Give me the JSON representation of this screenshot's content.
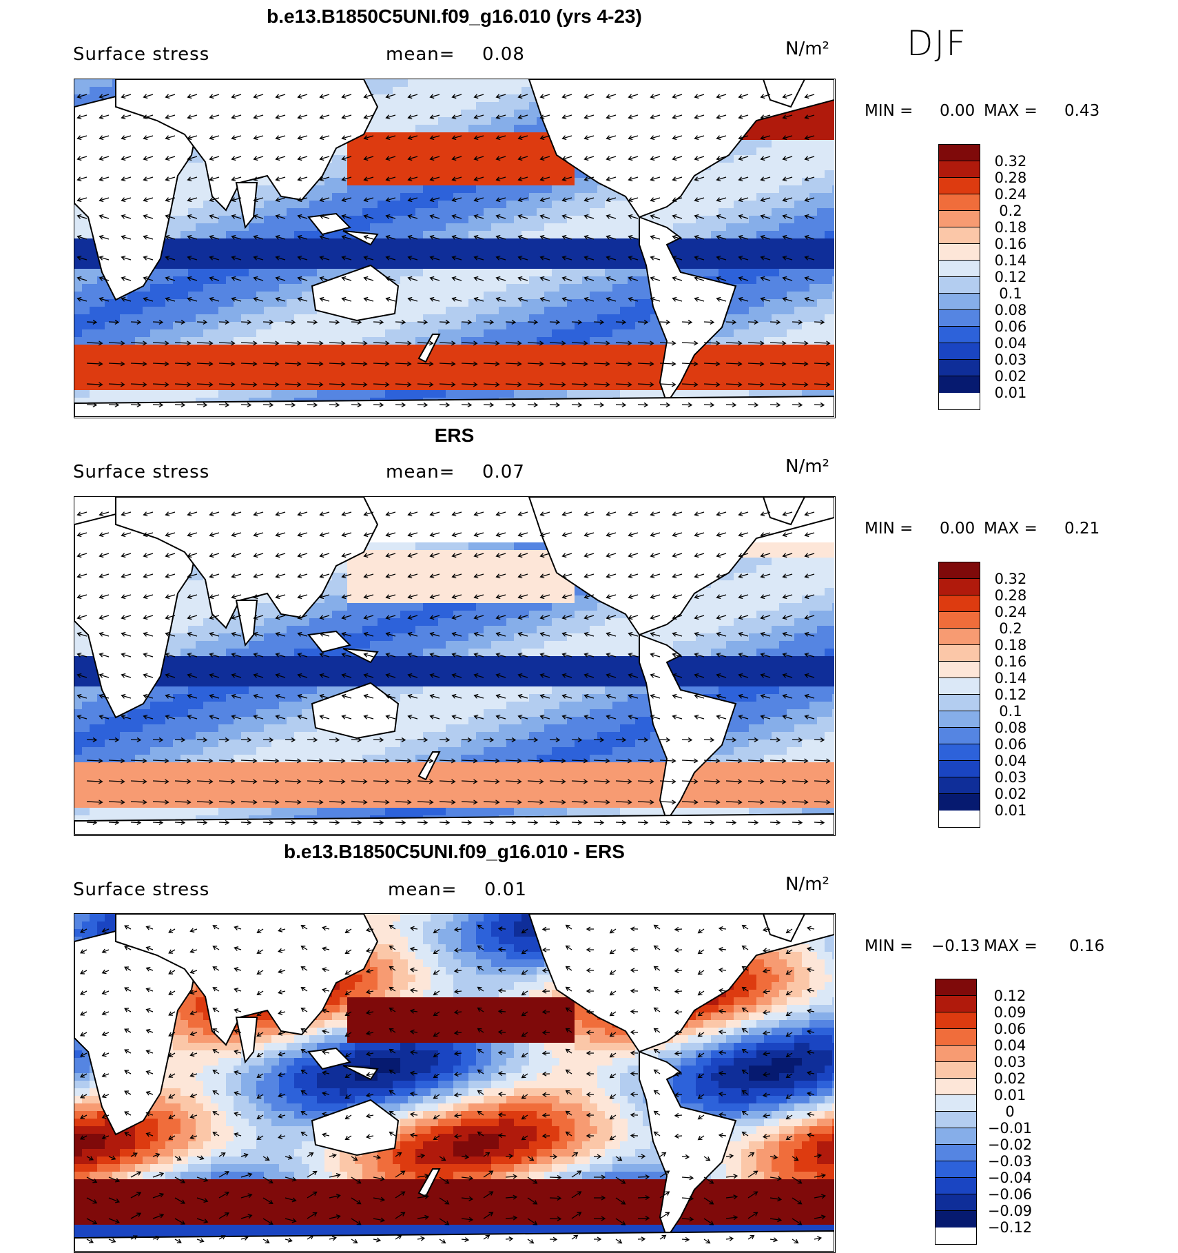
{
  "season": "DJF",
  "colors": {
    "model_scale": [
      "#7f0a0a",
      "#b01a0c",
      "#dd3b10",
      "#f06d3b",
      "#f79b72",
      "#fbc7a8",
      "#fde6d8",
      "#dbe8f7",
      "#b3cdf0",
      "#86aee9",
      "#5585e2",
      "#2d62da",
      "#1a45c2",
      "#0f2e99",
      "#061a70"
    ],
    "diff_scale": [
      "#7f0a0a",
      "#b01a0c",
      "#dd3b10",
      "#f06d3b",
      "#f79b72",
      "#fbc7a8",
      "#fde6d8",
      "#dbe8f7",
      "#b3cdf0",
      "#86aee9",
      "#5585e2",
      "#2d62da",
      "#1a45c2",
      "#0f2e99",
      "#061a70"
    ],
    "land": "#ffffff",
    "coast": "#000000"
  },
  "panels": [
    {
      "title": "b.e13.B1850C5UNI.f09_g16.010 (yrs 4-23)",
      "variable": "Surface stress",
      "mean_label": "mean=",
      "mean_value": "0.08",
      "units": "N/m²",
      "min_label": "MIN =",
      "min_value": "0.00",
      "max_label": "MAX =",
      "max_value": "0.43",
      "colorbar_labels": [
        "0.32",
        "0.28",
        "0.24",
        "0.2",
        "0.18",
        "0.16",
        "0.14",
        "0.12",
        "0.1",
        "0.08",
        "0.06",
        "0.04",
        "0.03",
        "0.02",
        "0.01"
      ],
      "style": "model"
    },
    {
      "title": "ERS",
      "variable": "Surface stress",
      "mean_label": "mean=",
      "mean_value": "0.07",
      "units": "N/m²",
      "min_label": "MIN =",
      "min_value": "0.00",
      "max_label": "MAX =",
      "max_value": "0.21",
      "colorbar_labels": [
        "0.32",
        "0.28",
        "0.24",
        "0.2",
        "0.18",
        "0.16",
        "0.14",
        "0.12",
        "0.1",
        "0.08",
        "0.06",
        "0.04",
        "0.03",
        "0.02",
        "0.01"
      ],
      "style": "obs"
    },
    {
      "title": "b.e13.B1850C5UNI.f09_g16.010 - ERS",
      "variable": "Surface stress",
      "mean_label": "mean=",
      "mean_value": "0.01",
      "units": "N/m²",
      "min_label": "MIN =",
      "min_value": "−0.13",
      "max_label": "MAX =",
      "max_value": "0.16",
      "colorbar_labels": [
        "0.12",
        "0.09",
        "0.06",
        "0.04",
        "0.03",
        "0.02",
        "0.01",
        "0",
        "−0.01",
        "−0.02",
        "−0.03",
        "−0.04",
        "−0.06",
        "−0.09",
        "−0.12"
      ],
      "style": "diff"
    }
  ]
}
